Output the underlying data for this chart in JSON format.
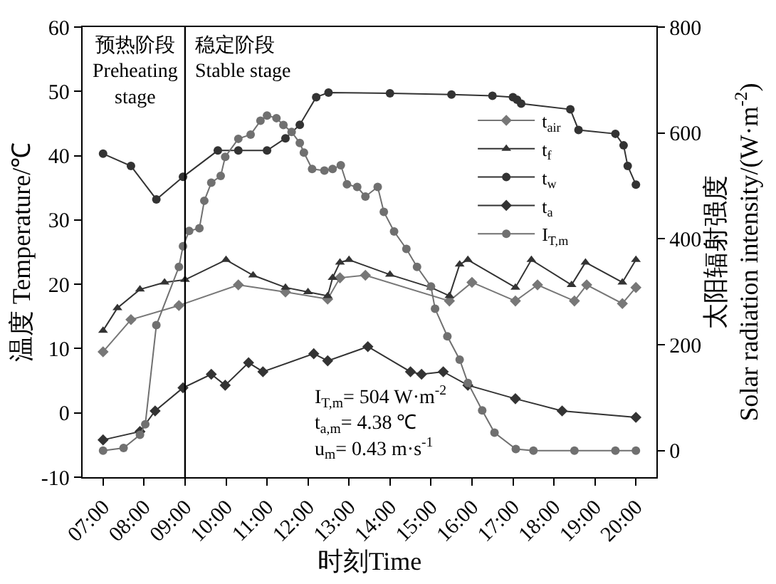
{
  "chart_data": {
    "type": "line",
    "xlabel": "时刻Time",
    "ylabel": "温度 Temperature/℃",
    "y2label": "太阳辐射强度\nSolar radiation intensity/(W·m$^{-2}$)",
    "xlim": [
      6.5,
      20.5
    ],
    "xticks": [
      {
        "value": 7,
        "label": "07:00"
      },
      {
        "value": 8,
        "label": "08:00"
      },
      {
        "value": 9,
        "label": "09:00"
      },
      {
        "value": 10,
        "label": "10:00"
      },
      {
        "value": 11,
        "label": "11:00"
      },
      {
        "value": 12,
        "label": "12:00"
      },
      {
        "value": 13,
        "label": "13:00"
      },
      {
        "value": 14,
        "label": "14:00"
      },
      {
        "value": 15,
        "label": "15:00"
      },
      {
        "value": 16,
        "label": "16:00"
      },
      {
        "value": 17,
        "label": "17:00"
      },
      {
        "value": 18,
        "label": "18:00"
      },
      {
        "value": 19,
        "label": "19:00"
      },
      {
        "value": 20,
        "label": "20:00"
      }
    ],
    "ylim": [
      -10,
      60
    ],
    "yticks": [
      -10,
      0,
      10,
      20,
      30,
      40,
      50,
      60
    ],
    "y2lim": [
      -50,
      800
    ],
    "y2ticks": [
      0,
      200,
      400,
      600,
      800
    ],
    "legend": "top right",
    "series": [
      {
        "name": "t$_{air}$",
        "color": "#777777",
        "marker": "diamond",
        "x": [
          7.0,
          7.68,
          8.85,
          10.3,
          11.45,
          12.48,
          12.78,
          13.4,
          15.45,
          16.0,
          17.06,
          17.6,
          18.5,
          18.8,
          19.67,
          20.0
        ],
        "values": [
          9.5,
          14.5,
          16.7,
          19.9,
          18.8,
          17.7,
          21,
          21.4,
          17.4,
          20.3,
          17.4,
          19.9,
          17.4,
          19.9,
          17,
          19.5
        ]
      },
      {
        "name": "t$_{f}$",
        "color": "#333333",
        "marker": "triangle",
        "x": [
          7.0,
          7.35,
          7.9,
          8.5,
          9.0,
          10.0,
          10.66,
          11.45,
          12.0,
          12.48,
          12.6,
          12.78,
          13.0,
          14.0,
          15.0,
          15.45,
          15.7,
          15.9,
          17.06,
          17.45,
          18.43,
          18.77,
          19.67,
          20.0
        ],
        "values": [
          12.8,
          16.3,
          19.2,
          20.3,
          20.7,
          23.8,
          21.4,
          19.5,
          18.8,
          18.2,
          21,
          23.4,
          23.8,
          21.5,
          19.5,
          18.2,
          23.1,
          23.8,
          19.5,
          23.8,
          19.9,
          23.4,
          20.3,
          23.8
        ]
      },
      {
        "name": "t$_{w}$",
        "color": "#333333",
        "marker": "circle",
        "x": [
          7.0,
          7.68,
          8.3,
          8.95,
          9.8,
          10.3,
          11.0,
          11.45,
          11.8,
          12.2,
          12.5,
          14.0,
          15.5,
          16.5,
          17.0,
          17.1,
          17.2,
          18.4,
          18.6,
          19.5,
          19.7,
          19.8,
          20.0
        ],
        "values": [
          40.3,
          38.4,
          33.2,
          36.7,
          40.8,
          40.8,
          40.8,
          42.7,
          44.8,
          49.1,
          49.8,
          49.7,
          49.5,
          49.3,
          49.1,
          48.7,
          48.1,
          47.2,
          44,
          43.4,
          41.6,
          38.4,
          35.5
        ]
      },
      {
        "name": "t$_{a}$",
        "color": "#333333",
        "marker": "diamond",
        "x": [
          7.0,
          7.9,
          8.27,
          8.95,
          9.64,
          9.98,
          10.55,
          10.9,
          12.14,
          12.48,
          13.46,
          14.5,
          14.77,
          15.3,
          15.9,
          17.06,
          18.2,
          20.0
        ],
        "values": [
          -4.2,
          -2.9,
          0.3,
          3.9,
          6.0,
          4.3,
          7.8,
          6.4,
          9.2,
          8.1,
          10.3,
          6.4,
          6.0,
          6.4,
          4.3,
          2.2,
          0.3,
          -0.7
        ]
      },
      {
        "name": "I$_{T,m}$",
        "color": "#707070",
        "marker": "circle",
        "axis": "y2",
        "x": [
          7.0,
          7.5,
          7.9,
          8.03,
          8.3,
          8.85,
          8.95,
          9.1,
          9.35,
          9.47,
          9.64,
          9.87,
          9.98,
          10.3,
          10.6,
          10.84,
          11.0,
          11.23,
          11.4,
          11.6,
          11.8,
          11.9,
          12.1,
          12.4,
          12.6,
          12.8,
          12.95,
          13.2,
          13.4,
          13.7,
          13.85,
          14.1,
          14.4,
          14.66,
          15.0,
          15.1,
          15.4,
          15.7,
          15.9,
          16.25,
          16.55,
          17.07,
          17.5,
          18.5,
          19.5,
          20.0
        ],
        "values": [
          0,
          5,
          30,
          50,
          237,
          347,
          386,
          415,
          420,
          472,
          506,
          519,
          555,
          589,
          597,
          623,
          633,
          628,
          615,
          602,
          581,
          563,
          532,
          529,
          532,
          539,
          503,
          498,
          480,
          498,
          451,
          414,
          381,
          347,
          310,
          268,
          216,
          172,
          128,
          76,
          34,
          3,
          0,
          0,
          0,
          0
        ]
      }
    ],
    "ref_lines": [
      {
        "axis": "x",
        "value": 9,
        "color": "#000000"
      }
    ],
    "annotations": [
      "预热阶段\nPreheating\nstage",
      "稳定阶段\nStable stage",
      "I$_{T,m}$= 504 W·m$^{-2}$\nt$_{a,m}$= 4.38 ℃\nu$_{m}$= 0.43 m·s$^{-1}$"
    ]
  }
}
